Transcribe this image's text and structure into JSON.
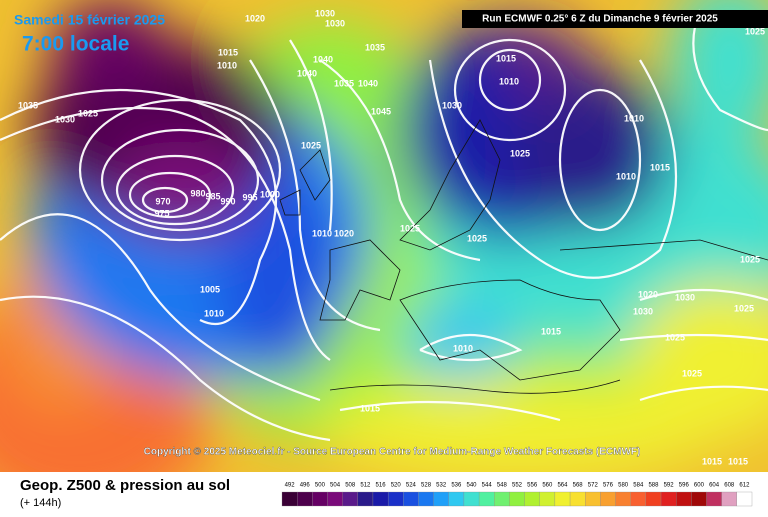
{
  "header": {
    "date": "Samedi 15 février 2025",
    "time": "7:00 locale",
    "run": "Run ECMWF 0.25° 6 Z du Dimanche 9 février 2025"
  },
  "copyright": "Copyright © 2025 Meteociel.fr - Source European Centre for Medium-Range Weather Forecasts (ECMWF)",
  "footer": {
    "title": "Geop. Z500 & pression au sol",
    "lead": "(+ 144h)"
  },
  "scale": {
    "labels": [
      492,
      496,
      500,
      504,
      508,
      512,
      516,
      520,
      524,
      528,
      532,
      536,
      540,
      544,
      548,
      552,
      556,
      560,
      564,
      568,
      572,
      576,
      580,
      584,
      588,
      592,
      596,
      600,
      604,
      608,
      612
    ],
    "colors": [
      "#3a0036",
      "#4d004c",
      "#650064",
      "#7a0a7a",
      "#5a1a8a",
      "#2a1a8a",
      "#1a1aa8",
      "#1a30c8",
      "#1a50e0",
      "#1a78f0",
      "#20a0f8",
      "#30c8f0",
      "#40e0d0",
      "#50f0a0",
      "#70f070",
      "#90f040",
      "#b0f030",
      "#d0f030",
      "#f0f030",
      "#f8e030",
      "#f8c030",
      "#f8a030",
      "#f88030",
      "#f86030",
      "#f04020",
      "#e02020",
      "#c01010",
      "#a00808",
      "#c03060",
      "#e0a0c0",
      "#ffffff"
    ]
  },
  "isobar_labels": [
    "1035",
    "1030",
    "1025",
    "1020",
    "1015",
    "1010",
    "970",
    "975",
    "980",
    "985",
    "990",
    "995",
    "1000",
    "1030",
    "1030",
    "1035",
    "1040",
    "1040",
    "1040",
    "1035",
    "1045",
    "1025",
    "1010",
    "1020",
    "1025",
    "1025",
    "1030",
    "1015",
    "1010",
    "1025",
    "1010",
    "1010",
    "1015",
    "1025",
    "1020",
    "1030",
    "1030",
    "1025",
    "1025",
    "1025",
    "1015",
    "1010",
    "1005",
    "1010",
    "1015",
    "1015",
    "1015",
    "1025"
  ]
}
